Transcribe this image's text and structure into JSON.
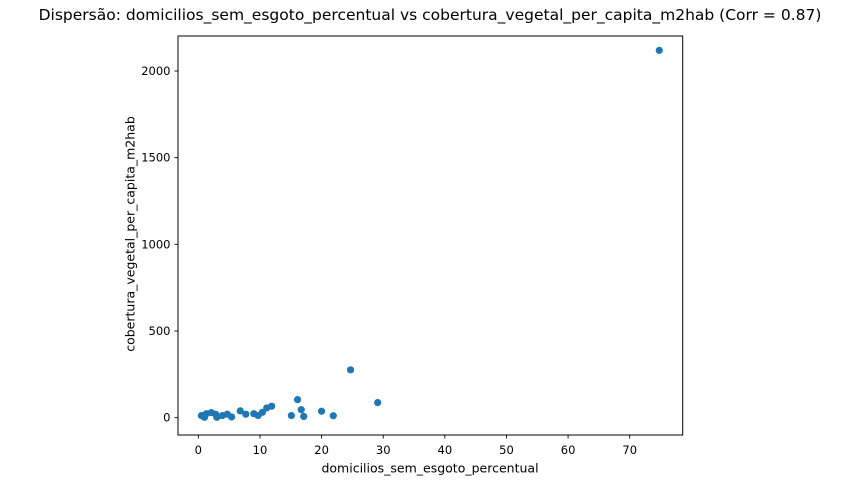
{
  "figure": {
    "background_color": "#ffffff",
    "text_color": "#000000",
    "axis_color": "#000000"
  },
  "chart_data": {
    "type": "scatter",
    "title": "Dispersão: domicilios_sem_esgoto_percentual vs cobertura_vegetal_per_capita_m2hab (Corr = 0.87)",
    "xlabel": "domicilios_sem_esgoto_percentual",
    "ylabel": "cobertura_vegetal_per_capita_m2hab",
    "correlation": 0.87,
    "marker_color": "#1f77b4",
    "grid": false,
    "legend_position": "none",
    "xlim": [
      -3.3,
      78.6
    ],
    "ylim": [
      -100,
      2202
    ],
    "xticks": [
      0,
      10,
      20,
      30,
      40,
      50,
      60,
      70
    ],
    "yticks": [
      0,
      500,
      1000,
      1500,
      2000
    ],
    "points": [
      [
        0.5,
        12
      ],
      [
        1.0,
        2
      ],
      [
        1.3,
        23
      ],
      [
        2.1,
        29
      ],
      [
        2.8,
        20
      ],
      [
        3.0,
        2
      ],
      [
        3.9,
        12
      ],
      [
        4.7,
        20
      ],
      [
        5.4,
        4
      ],
      [
        6.8,
        39
      ],
      [
        7.7,
        20
      ],
      [
        9.0,
        23
      ],
      [
        9.7,
        12
      ],
      [
        10.4,
        31
      ],
      [
        11.1,
        56
      ],
      [
        11.9,
        66
      ],
      [
        15.1,
        12
      ],
      [
        16.1,
        104
      ],
      [
        16.7,
        46
      ],
      [
        17.1,
        7
      ],
      [
        20.0,
        37
      ],
      [
        21.9,
        11
      ],
      [
        24.7,
        276
      ],
      [
        29.1,
        87
      ],
      [
        74.8,
        2119
      ]
    ]
  }
}
